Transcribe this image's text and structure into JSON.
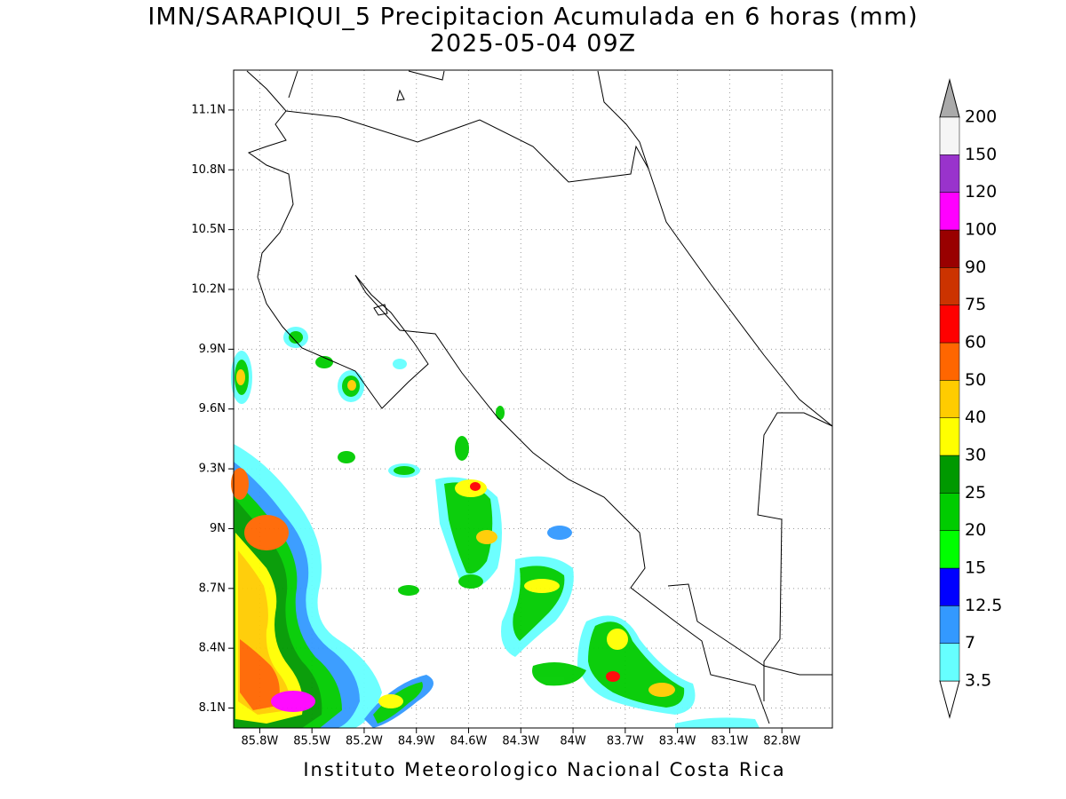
{
  "map": {
    "title": "IMN/SARAPIQUI_5 Precipitacion Acumulada en 6 horas (mm)",
    "subtitle": "2025-05-04 09Z",
    "footer": "Instituto Meteorologico Nacional Costa Rica",
    "xlim": [
      -85.95,
      -82.51
    ],
    "ylim": [
      8.0,
      11.3
    ],
    "xticks": [
      {
        "value": -85.8,
        "label": "85.8W"
      },
      {
        "value": -85.5,
        "label": "85.5W"
      },
      {
        "value": -85.2,
        "label": "85.2W"
      },
      {
        "value": -84.9,
        "label": "84.9W"
      },
      {
        "value": -84.6,
        "label": "84.6W"
      },
      {
        "value": -84.3,
        "label": "84.3W"
      },
      {
        "value": -84.0,
        "label": "84W"
      },
      {
        "value": -83.7,
        "label": "83.7W"
      },
      {
        "value": -83.4,
        "label": "83.4W"
      },
      {
        "value": -83.1,
        "label": "83.1W"
      },
      {
        "value": -82.8,
        "label": "82.8W"
      }
    ],
    "yticks": [
      {
        "value": 8.1,
        "label": "8.1N"
      },
      {
        "value": 8.4,
        "label": "8.4N"
      },
      {
        "value": 8.7,
        "label": "8.7N"
      },
      {
        "value": 9.0,
        "label": "9N"
      },
      {
        "value": 9.3,
        "label": "9.3N"
      },
      {
        "value": 9.6,
        "label": "9.6N"
      },
      {
        "value": 9.9,
        "label": "9.9N"
      },
      {
        "value": 10.2,
        "label": "10.2N"
      },
      {
        "value": 10.5,
        "label": "10.5N"
      },
      {
        "value": 10.8,
        "label": "10.8N"
      },
      {
        "value": 11.1,
        "label": "11.1N"
      }
    ],
    "grid": true,
    "colorbar": {
      "levels": [
        3.5,
        7,
        12.5,
        15,
        20,
        25,
        30,
        40,
        50,
        60,
        75,
        90,
        100,
        120,
        150,
        200
      ],
      "colors": [
        "#66ffff",
        "#3399ff",
        "#0000ff",
        "#00ff00",
        "#00cc00",
        "#009900",
        "#ffff00",
        "#ffcc00",
        "#ff6600",
        "#ff0000",
        "#cc3300",
        "#990000",
        "#ff00ff",
        "#9933cc",
        "#f5f5f5"
      ],
      "under_color": "#ffffff",
      "over_color": "#aaaaaa"
    }
  }
}
